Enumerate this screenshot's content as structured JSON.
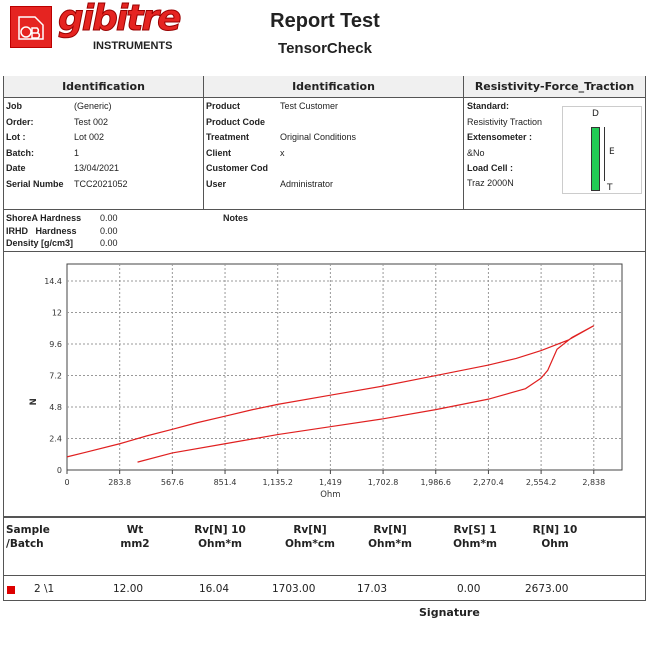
{
  "logo": {
    "brand": "gibitre",
    "sub": "INSTRUMENTS"
  },
  "header": {
    "title": "Report Test",
    "subtitle": "TensorCheck"
  },
  "sections": {
    "ident1": "Identification",
    "ident2": "Identification",
    "test": "Resistivity-Force_Traction"
  },
  "ident1": [
    {
      "label": "Job",
      "value": "(Generic)"
    },
    {
      "label": "Order:",
      "value": "Test 002"
    },
    {
      "label": "Lot :",
      "value": "Lot 002"
    },
    {
      "label": "Batch:",
      "value": "1"
    },
    {
      "label": "Date",
      "value": "13/04/2021"
    },
    {
      "label": "Serial Numbe",
      "value": "TCC2021052"
    }
  ],
  "ident2": [
    {
      "label": "Product",
      "value": "Test Customer"
    },
    {
      "label": "Product Code",
      "value": ""
    },
    {
      "label": "Treatment",
      "value": "Original Conditions"
    },
    {
      "label": "Client",
      "value": "x"
    },
    {
      "label": "Customer Cod",
      "value": ""
    },
    {
      "label": "User",
      "value": "Administrator"
    }
  ],
  "test": {
    "standard_label": "Standard:",
    "standard": "Resistivity Traction",
    "ext_label": "Extensometer :",
    "ext": "&No",
    "cell_label": "Load Cell :",
    "cell": "Traz 2000N",
    "diagram": {
      "D": "D",
      "E": "E",
      "T": "T",
      "color": "#22cc55"
    }
  },
  "hardness": [
    {
      "label": "ShoreA Hardness",
      "value": "0.00"
    },
    {
      "label": "IRHD   Hardness",
      "value": "0.00"
    },
    {
      "label": "Density [g/cm3]",
      "value": "0.00"
    }
  ],
  "notes_label": "Notes",
  "chart_data": {
    "type": "line",
    "xlabel": "Ohm",
    "ylabel": "N",
    "xlim": [
      0,
      2990
    ],
    "ylim": [
      0,
      15.7
    ],
    "xticks": [
      "0",
      "283.8",
      "567.6",
      "851.4",
      "1,135.2",
      "1,419",
      "1,702.8",
      "1,986.6",
      "2,270.4",
      "2,554.2",
      "2,838"
    ],
    "xtick_values": [
      0,
      283.8,
      567.6,
      851.4,
      1135.2,
      1419,
      1702.8,
      1986.6,
      2270.4,
      2554.2,
      2838
    ],
    "yticks": [
      "0",
      "2.4",
      "4.8",
      "7.2",
      "9.6",
      "12",
      "14.4"
    ],
    "ytick_values": [
      0,
      2.4,
      4.8,
      7.2,
      9.6,
      12,
      14.4
    ],
    "grid": true,
    "color": "#e02020",
    "series": [
      {
        "points": [
          [
            0,
            1.0
          ],
          [
            100,
            1.35
          ],
          [
            283.8,
            2.0
          ],
          [
            430,
            2.6
          ],
          [
            567.6,
            3.1
          ],
          [
            700,
            3.6
          ],
          [
            851.4,
            4.1
          ],
          [
            1000,
            4.6
          ],
          [
            1135.2,
            5.0
          ],
          [
            1419,
            5.7
          ],
          [
            1702.8,
            6.4
          ],
          [
            1986.6,
            7.2
          ],
          [
            2270.4,
            8.0
          ],
          [
            2420,
            8.5
          ],
          [
            2554.2,
            9.1
          ],
          [
            2700,
            9.9
          ],
          [
            2838,
            11.0
          ],
          [
            2720,
            10.1
          ],
          [
            2640,
            9.2
          ],
          [
            2590,
            7.6
          ],
          [
            2554.2,
            7.0
          ],
          [
            2470,
            6.2
          ],
          [
            2270.4,
            5.4
          ],
          [
            1986.6,
            4.6
          ],
          [
            1702.8,
            3.9
          ],
          [
            1419,
            3.3
          ],
          [
            1135.2,
            2.7
          ],
          [
            851.4,
            2.0
          ],
          [
            567.6,
            1.3
          ],
          [
            380,
            0.6
          ]
        ]
      }
    ]
  },
  "results": {
    "headers": [
      [
        "Sample",
        "/Batch"
      ],
      [
        "Wt",
        "mm2"
      ],
      [
        "Rv[N] 10",
        "Ohm*m"
      ],
      [
        "Rv[N]",
        "Ohm*cm"
      ],
      [
        "Rv[N]",
        "Ohm*m"
      ],
      [
        "Rv[S] 1",
        "Ohm*m"
      ],
      [
        "R[N] 10",
        "Ohm"
      ]
    ],
    "rows": [
      {
        "marker_color": "#dd0000",
        "cells": [
          "2 \\1",
          "12.00",
          "16.04",
          "1703.00",
          "17.03",
          "0.00",
          "2673.00"
        ]
      }
    ]
  },
  "signature_label": "Signature"
}
